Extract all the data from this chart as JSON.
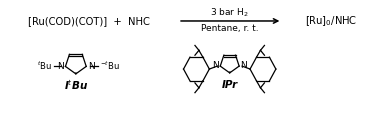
{
  "bg_color": "#ffffff",
  "reaction_line": {
    "reagent_above": "3 bar H$_2$",
    "reagent_below": "Pentane, r. t.",
    "reactant": "[Ru(COD)(COT)]  +  NHC",
    "product": "[Ru]$_0$/NHC"
  },
  "nhc1_label": "I$^t$Bu",
  "nhc2_label": "IPr",
  "text_color": "#000000",
  "line_color": "#000000",
  "figsize": [
    3.78,
    1.35
  ],
  "dpi": 100
}
